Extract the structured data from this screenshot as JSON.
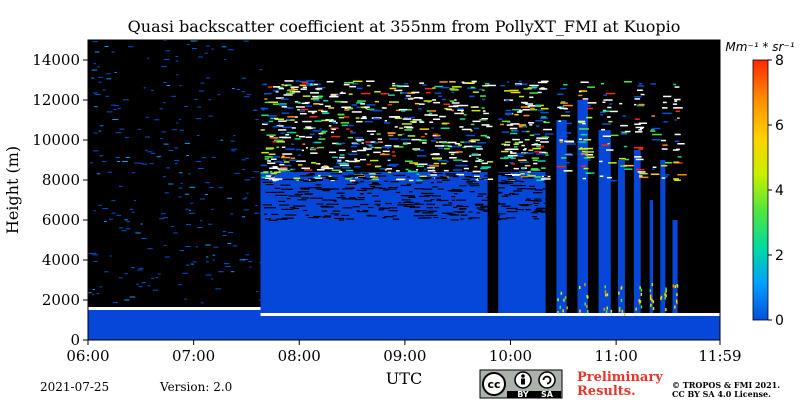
{
  "chart_data": {
    "type": "heatmap",
    "title": "Quasi backscatter coefficient at 355nm from PollyXT_FMI at Kuopio",
    "xlabel": "UTC",
    "ylabel": "Height (m)",
    "xlim": [
      "06:00",
      "11:59"
    ],
    "ylim": [
      0,
      15000
    ],
    "xticks": [
      "06:00",
      "07:00",
      "08:00",
      "09:00",
      "10:00",
      "11:00",
      "11:59"
    ],
    "yticks": [
      0,
      2000,
      4000,
      6000,
      8000,
      10000,
      12000,
      14000
    ],
    "colorbar": {
      "unit": "Mm⁻¹ * sr⁻¹",
      "range": [
        0,
        8
      ],
      "ticks": [
        0,
        2,
        4,
        6,
        8
      ],
      "colors": [
        "#0050dc",
        "#00a0ff",
        "#00dca0",
        "#50e63c",
        "#c8f000",
        "#ffd200",
        "#ff8c00",
        "#ff2800"
      ]
    },
    "colors": {
      "no_signal": "#000000",
      "low_backscatter": "#0646d8",
      "cloud": "#ffffff"
    },
    "scene": {
      "boundary_layer": [
        {
          "start": "06:00",
          "end": "07:38",
          "top_m": 1550
        },
        {
          "start": "07:38",
          "end": "11:59",
          "top_m": 1250
        }
      ],
      "signal_block": {
        "start": "07:38",
        "end": "10:20",
        "top_m": 8400
      },
      "cloud_band_m": [
        8000,
        13000
      ],
      "profile_gaps": [
        {
          "start": "09:47",
          "end": "09:53"
        },
        {
          "start": "10:20",
          "end": "10:26"
        },
        {
          "start": "10:32",
          "end": "10:38"
        },
        {
          "start": "10:44",
          "end": "10:50"
        },
        {
          "start": "10:57",
          "end": "11:01"
        },
        {
          "start": "11:05",
          "end": "11:10"
        },
        {
          "start": "11:14",
          "end": "11:19"
        },
        {
          "start": "11:21",
          "end": "11:25"
        },
        {
          "start": "11:28",
          "end": "11:32"
        },
        {
          "start": "11:35",
          "end": "11:59"
        }
      ],
      "signal_columns": [
        {
          "start": "10:26",
          "end": "10:32",
          "top_m": 11000
        },
        {
          "start": "10:38",
          "end": "10:44",
          "top_m": 12000
        },
        {
          "start": "10:50",
          "end": "10:57",
          "top_m": 10500
        },
        {
          "start": "11:01",
          "end": "11:05",
          "top_m": 9000
        },
        {
          "start": "11:10",
          "end": "11:14",
          "top_m": 9500
        },
        {
          "start": "11:19",
          "end": "11:21",
          "top_m": 7000
        },
        {
          "start": "11:25",
          "end": "11:28",
          "top_m": 9000
        },
        {
          "start": "11:32",
          "end": "11:35",
          "top_m": 6000
        }
      ]
    }
  },
  "footer": {
    "date": "2021-07-25",
    "version": "Version: 2.0",
    "preliminary_line1": "Preliminary",
    "preliminary_line2": "Results.",
    "copyright_line1": "© TROPOS & FMI 2021.",
    "copyright_line2": "CC BY SA 4.0 License.",
    "license_by": "BY",
    "license_sa": "SA",
    "license_cc": "cc"
  }
}
